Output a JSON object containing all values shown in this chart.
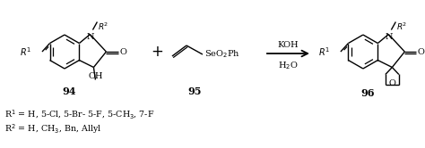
{
  "figsize": [
    4.74,
    1.66
  ],
  "dpi": 100,
  "bg_color": "#ffffff",
  "compound94_label": "94",
  "compound95_label": "95",
  "compound96_label": "96",
  "r1_text": "R$^1$ = H, 5-Cl, 5-Br- 5-F, 5-CH$_3$, 7-F",
  "r2_text": "R$^2$ = H, CH$_3$, Bn, Allyl",
  "arrow_label_top": "KOH",
  "arrow_label_bot": "H$_2$O",
  "font_size_main": 7.5,
  "font_size_label": 6.8,
  "font_size_compound": 8.0,
  "font_size_atom": 7.0
}
